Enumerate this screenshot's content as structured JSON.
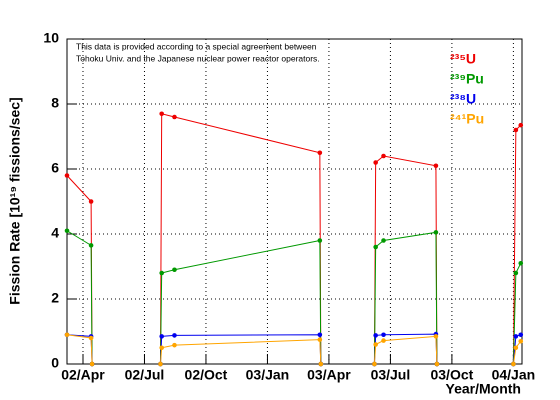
{
  "chart_data": {
    "type": "line",
    "annotation": [
      "This data is provided according to a special agreement between",
      "Tohoku Univ. and the Japanese nuclear power reactor operators."
    ],
    "y_label": "Fission Rate [10¹⁹ fissions/sec]",
    "x_label": "Year/Month",
    "x": [
      2002.185,
      2002.283,
      2002.287,
      2002.4,
      2002.565,
      2002.57,
      2002.622,
      2003.213,
      2003.217,
      2003.3,
      2003.435,
      2003.44,
      2003.472,
      2003.685,
      2003.689,
      2003.85,
      2004.0,
      2004.01,
      2004.03
    ],
    "series": [
      {
        "name": "²³⁵U",
        "color": "#ee0000",
        "values": [
          5.8,
          5.0,
          0,
          null,
          0,
          7.7,
          7.6,
          6.5,
          0,
          null,
          0,
          6.2,
          6.4,
          6.1,
          0,
          null,
          0,
          7.2,
          7.35
        ]
      },
      {
        "name": "²³⁹Pu",
        "color": "#009900",
        "values": [
          4.1,
          3.65,
          0,
          null,
          0,
          2.8,
          2.9,
          3.8,
          0,
          null,
          0,
          3.6,
          3.8,
          4.05,
          0,
          null,
          0,
          2.8,
          3.1
        ]
      },
      {
        "name": "²³⁸U",
        "color": "#0000ee",
        "values": [
          0.9,
          0.85,
          0,
          null,
          0,
          0.85,
          0.88,
          0.9,
          0,
          null,
          0,
          0.88,
          0.9,
          0.92,
          0,
          null,
          0,
          0.85,
          0.9
        ]
      },
      {
        "name": "²⁴¹Pu",
        "color": "#ffa500",
        "values": [
          0.9,
          0.8,
          0,
          null,
          0,
          0.5,
          0.58,
          0.75,
          0,
          null,
          0,
          0.6,
          0.72,
          0.85,
          0,
          null,
          0,
          0.5,
          0.7
        ]
      }
    ],
    "xlim": [
      2002.185,
      2004.035
    ],
    "xticks": [
      {
        "value": 2002.25,
        "label": "02/Apr"
      },
      {
        "value": 2002.5,
        "label": "02/Jul"
      },
      {
        "value": 2002.75,
        "label": "02/Oct"
      },
      {
        "value": 2003.0,
        "label": "03/Jan"
      },
      {
        "value": 2003.25,
        "label": "03/Apr"
      },
      {
        "value": 2003.5,
        "label": "03/Jul"
      },
      {
        "value": 2003.75,
        "label": "03/Oct"
      },
      {
        "value": 2004.0,
        "label": "04/Jan"
      }
    ],
    "ylim": [
      0,
      10
    ],
    "yticks": [
      0,
      2,
      4,
      6,
      8,
      10
    ],
    "grid": true
  }
}
